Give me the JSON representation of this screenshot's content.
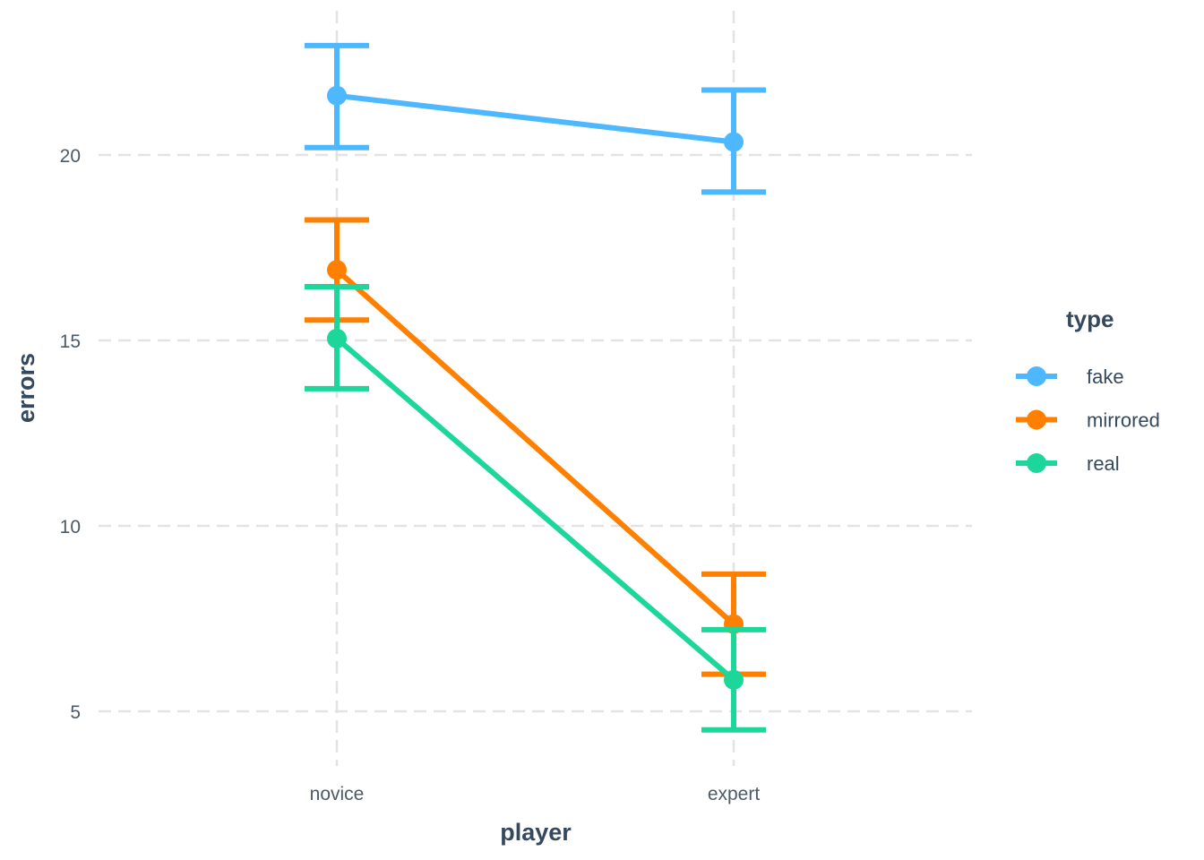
{
  "chart_data": {
    "type": "line",
    "xlabel": "player",
    "ylabel": "errors",
    "categories": [
      "novice",
      "expert"
    ],
    "ylim": [
      3.5,
      23.3
    ],
    "yticks": [
      5,
      10,
      15,
      20
    ],
    "grid": true,
    "legend": {
      "title": "type",
      "placement": "right"
    },
    "error_bars": true,
    "series": [
      {
        "name": "fake",
        "color": "#4db8ff",
        "values": [
          21.6,
          20.35
        ],
        "lower": [
          20.2,
          19.0
        ],
        "upper": [
          22.95,
          21.75
        ]
      },
      {
        "name": "mirrored",
        "color": "#ff7f00",
        "values": [
          16.9,
          7.35
        ],
        "lower": [
          15.55,
          6.0
        ],
        "upper": [
          18.25,
          8.7
        ]
      },
      {
        "name": "real",
        "color": "#1dd69a",
        "values": [
          15.05,
          5.85
        ],
        "lower": [
          13.7,
          4.5
        ],
        "upper": [
          16.45,
          7.2
        ]
      }
    ]
  }
}
